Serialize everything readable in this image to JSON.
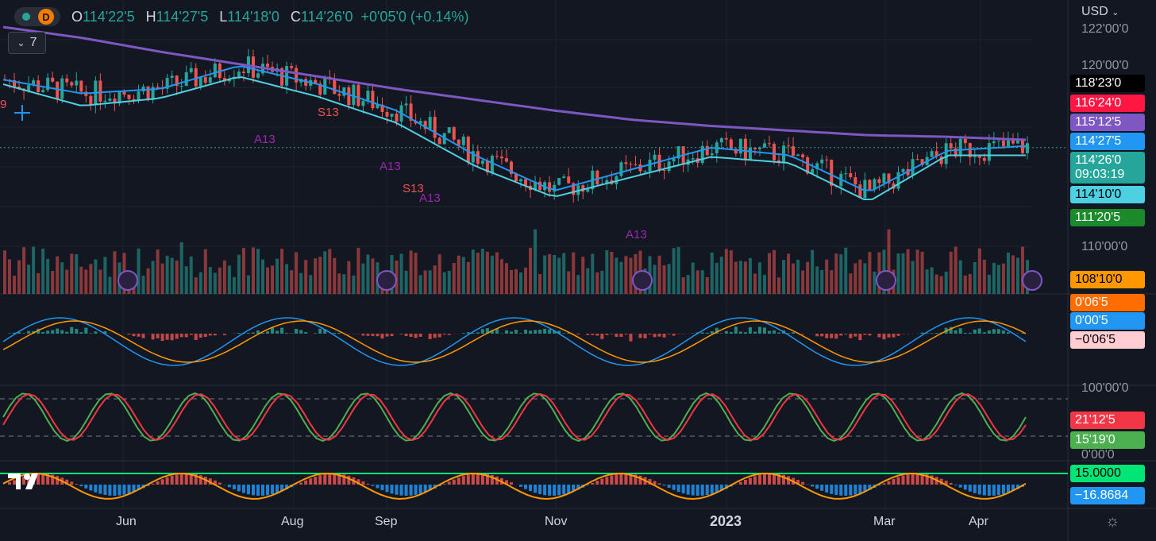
{
  "symbol_bar": {
    "interval": "D",
    "open_label": "O",
    "open": "114'22'5",
    "high_label": "H",
    "high": "114'27'5",
    "low_label": "L",
    "low": "114'18'0",
    "close_label": "C",
    "close": "114'26'0",
    "change": "+0'05'0 (+0.14%)"
  },
  "collapse_button": {
    "label": "7",
    "icon": "chevron-down-icon"
  },
  "currency_menu": {
    "label": "USD",
    "icon": "chevron-down-icon"
  },
  "colors": {
    "background": "#131722",
    "up": "#26a69a",
    "down": "#ef5350",
    "ma_purple": "#7e57c2",
    "ma_blue": "#2196f3",
    "ma_cyan": "#4dd0e1",
    "macd_orange": "#ff9800",
    "stoch_green": "#4caf50",
    "stoch_red": "#f23645",
    "adx_line": "#00e676"
  },
  "price_axis": {
    "labels": [
      "122'00'0",
      "120'00'0",
      "110'00'0"
    ],
    "tags": [
      {
        "text": "118'23'0",
        "bg": "#000000",
        "fg": "#ffffff"
      },
      {
        "text": "116'24'0",
        "bg": "#ff1744",
        "fg": "#ffffff"
      },
      {
        "text": "115'12'5",
        "bg": "#7e57c2",
        "fg": "#ffffff"
      },
      {
        "text": "114'27'5",
        "bg": "#2196f3",
        "fg": "#ffffff"
      },
      {
        "text": "114'26'0",
        "sub": "09:03:19",
        "bg": "#26a69a",
        "fg": "#ffffff"
      },
      {
        "text": "114'10'0",
        "bg": "#4dd0e1",
        "fg": "#000000"
      },
      {
        "text": "111'20'5",
        "bg": "#1b8a2b",
        "fg": "#ffffff"
      },
      {
        "text": "108'10'0",
        "bg": "#ff9800",
        "fg": "#000000"
      }
    ]
  },
  "macd_axis": {
    "tags": [
      {
        "text": "0'06'5",
        "bg": "#ff6d00",
        "fg": "#ffffff"
      },
      {
        "text": "0'00'5",
        "bg": "#2196f3",
        "fg": "#ffffff"
      },
      {
        "text": "−0'06'5",
        "bg": "#ffcdd2",
        "fg": "#000000"
      }
    ]
  },
  "stoch_axis": {
    "labels": [
      "100'00'0",
      "0'00'0"
    ],
    "tags": [
      {
        "text": "21'12'5",
        "bg": "#f23645",
        "fg": "#ffffff"
      },
      {
        "text": "15'19'0",
        "bg": "#4caf50",
        "fg": "#ffffff"
      }
    ]
  },
  "adx_axis": {
    "tags": [
      {
        "text": "15.0000",
        "bg": "#00e676",
        "fg": "#000000"
      },
      {
        "text": "−16.8684",
        "bg": "#2196f3",
        "fg": "#ffffff"
      }
    ]
  },
  "time_axis": [
    "Jun",
    "Aug",
    "Sep",
    "Nov",
    "2023",
    "Mar",
    "Apr"
  ],
  "chart_data": {
    "type": "candlestick",
    "title": "",
    "xlabel": "",
    "ylabel": "",
    "x_range": [
      "May 2022",
      "Apr 2023"
    ],
    "ylim": [
      108,
      122.5
    ],
    "last": {
      "open": "114'22'5",
      "high": "114'27'5",
      "low": "114'18'0",
      "close": "114'26'0"
    },
    "moving_averages": [
      {
        "color": "purple",
        "values": [
          122.6,
          121.9,
          121.0,
          120.2,
          119.4,
          118.6,
          117.9,
          117.2,
          116.6,
          116.2,
          115.9,
          115.6,
          115.5,
          115.3
        ]
      },
      {
        "color": "blue",
        "values": [
          119.2,
          118.3,
          118.6,
          120.1,
          118.9,
          117.2,
          114.3,
          112.0,
          113.4,
          114.8,
          114.3,
          111.9,
          114.6,
          114.9
        ]
      },
      {
        "color": "cyan",
        "values": [
          118.9,
          117.5,
          118.0,
          119.4,
          118.1,
          116.4,
          113.6,
          111.6,
          112.9,
          114.2,
          113.8,
          111.3,
          114.3,
          114.3
        ]
      }
    ],
    "labels_on_chart": [
      "A13",
      "S13",
      "9"
    ],
    "indicators": {
      "macd": {
        "macd": "0'00'5",
        "signal": "0'06'5",
        "histogram": "−0'06'5"
      },
      "stochastic": {
        "k": "21'12'5",
        "d": "15'19'0",
        "levels": [
          80,
          20
        ]
      },
      "adx": {
        "value": "15.0000",
        "histogram": "−16.8684"
      }
    },
    "grid": true
  },
  "icons": {
    "settings": "gear-icon",
    "replay": "replay-icon",
    "flash": "lightning-icon",
    "crosshair": "crosshair-icon",
    "logo": "tradingview-logo-icon"
  }
}
